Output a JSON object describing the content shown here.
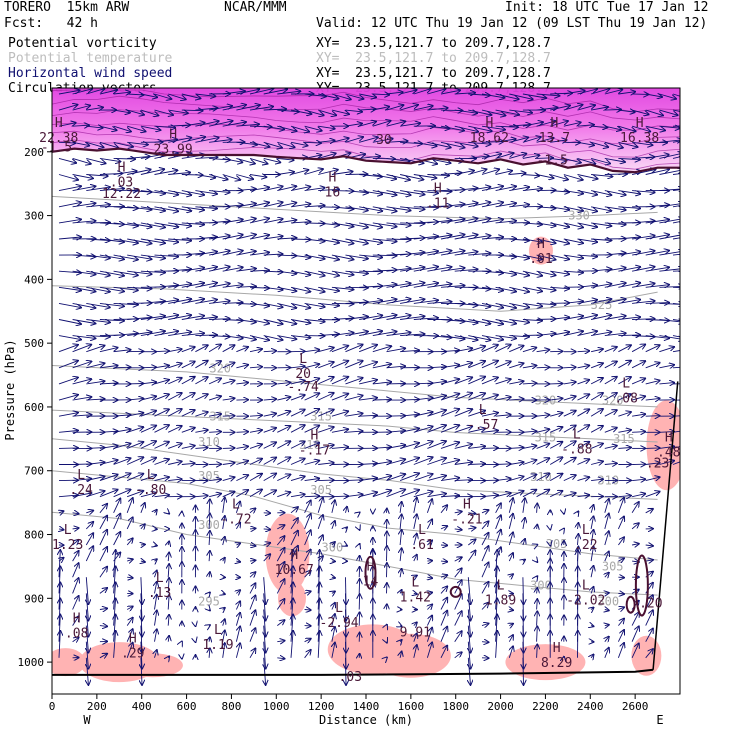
{
  "header": {
    "model": "TORERO  15km ARW",
    "center": "NCAR/MMM",
    "init": "Init: 18 UTC Tue 17 Jan 12",
    "fcst": "Fcst:   42 h",
    "valid": "Valid: 12 UTC Thu 19 Jan 12 (09 LST Thu 19 Jan 12)"
  },
  "legend": [
    {
      "name": "Potential vorticity",
      "color": "#000000",
      "xy": "XY=  23.5,121.7 to 209.7,128.7"
    },
    {
      "name": "Potential temperature",
      "color": "#bdbdbd",
      "xy": "XY=  23.5,121.7 to 209.7,128.7"
    },
    {
      "name": "Horizontal wind speed",
      "color": "#101070",
      "xy": "XY=  23.5,121.7 to 209.7,128.7"
    },
    {
      "name": "Circulation vectors",
      "color": "#000000",
      "xy": "XY=  23.5,121.7 to 209.7,128.7"
    }
  ],
  "colors": {
    "wind": "#101070",
    "theta": "#a8a8a8",
    "pv_pos": "#ffb3b3",
    "pv_contour": "#4a1030",
    "strat": "#e030d8"
  },
  "chart_data": {
    "type": "cross-section",
    "xlabel": "Distance (km)",
    "ylabel": "Pressure (hPa)",
    "xlim": [
      0,
      2800
    ],
    "ylim": [
      1050,
      100
    ],
    "x_ticks": [
      0,
      200,
      400,
      600,
      800,
      1000,
      1200,
      1400,
      1600,
      1800,
      2000,
      2200,
      2400,
      2600
    ],
    "y_ticks": [
      200,
      300,
      400,
      500,
      600,
      700,
      800,
      900,
      1000
    ],
    "west_label": "W",
    "east_label": "E",
    "theta_contours": [
      {
        "label": "300",
        "points": [
          [
            0,
            765
          ],
          [
            300,
            775
          ],
          [
            600,
            800
          ],
          [
            900,
            815
          ],
          [
            1200,
            830
          ],
          [
            1500,
            850
          ],
          [
            1800,
            870
          ],
          [
            2100,
            880
          ],
          [
            2400,
            890
          ],
          [
            2700,
            895
          ]
        ]
      },
      {
        "label": "305",
        "points": [
          [
            0,
            700
          ],
          [
            300,
            710
          ],
          [
            600,
            720
          ],
          [
            900,
            740
          ],
          [
            1200,
            770
          ],
          [
            1500,
            790
          ],
          [
            1800,
            800
          ],
          [
            2100,
            815
          ],
          [
            2400,
            830
          ],
          [
            2700,
            840
          ]
        ]
      },
      {
        "label": "310",
        "points": [
          [
            0,
            650
          ],
          [
            300,
            660
          ],
          [
            600,
            675
          ],
          [
            900,
            690
          ],
          [
            1200,
            705
          ],
          [
            1500,
            715
          ],
          [
            1800,
            730
          ],
          [
            2100,
            735
          ],
          [
            2400,
            740
          ],
          [
            2700,
            745
          ]
        ]
      },
      {
        "label": "315",
        "points": [
          [
            0,
            605
          ],
          [
            300,
            610
          ],
          [
            600,
            615
          ],
          [
            900,
            620
          ],
          [
            1200,
            625
          ],
          [
            1500,
            630
          ],
          [
            1800,
            640
          ],
          [
            2100,
            645
          ],
          [
            2400,
            650
          ],
          [
            2700,
            655
          ]
        ]
      },
      {
        "label": "320",
        "points": [
          [
            0,
            535
          ],
          [
            300,
            540
          ],
          [
            600,
            545
          ],
          [
            900,
            555
          ],
          [
            1200,
            565
          ],
          [
            1500,
            575
          ],
          [
            1800,
            585
          ],
          [
            2100,
            590
          ],
          [
            2400,
            595
          ],
          [
            2700,
            600
          ]
        ]
      },
      {
        "label": "325",
        "points": [
          [
            0,
            410
          ],
          [
            500,
            415
          ],
          [
            1000,
            425
          ],
          [
            1500,
            440
          ],
          [
            2000,
            450
          ],
          [
            2400,
            440
          ],
          [
            2700,
            420
          ]
        ]
      },
      {
        "label": "330",
        "points": [
          [
            0,
            270
          ],
          [
            500,
            280
          ],
          [
            1000,
            290
          ],
          [
            1500,
            300
          ],
          [
            2000,
            305
          ],
          [
            2400,
            300
          ],
          [
            2700,
            295
          ]
        ]
      }
    ],
    "theta_label_positions": [
      {
        "label": "295",
        "x": 700,
        "p": 905
      },
      {
        "label": "300",
        "x": 700,
        "p": 785
      },
      {
        "label": "300",
        "x": 1250,
        "p": 820
      },
      {
        "label": "300",
        "x": 2180,
        "p": 880
      },
      {
        "label": "300",
        "x": 2480,
        "p": 905
      },
      {
        "label": "305",
        "x": 700,
        "p": 708
      },
      {
        "label": "305",
        "x": 1200,
        "p": 730
      },
      {
        "label": "305",
        "x": 2250,
        "p": 815
      },
      {
        "label": "305",
        "x": 2500,
        "p": 850
      },
      {
        "label": "310",
        "x": 700,
        "p": 655
      },
      {
        "label": "310",
        "x": 1150,
        "p": 660
      },
      {
        "label": "310",
        "x": 2180,
        "p": 710
      },
      {
        "label": "310",
        "x": 2480,
        "p": 715
      },
      {
        "label": "315",
        "x": 750,
        "p": 615
      },
      {
        "label": "315",
        "x": 1200,
        "p": 615
      },
      {
        "label": "315",
        "x": 2200,
        "p": 648
      },
      {
        "label": "315",
        "x": 2550,
        "p": 650
      },
      {
        "label": "320",
        "x": 750,
        "p": 540
      },
      {
        "label": "320",
        "x": 2200,
        "p": 590
      },
      {
        "label": "320",
        "x": 2500,
        "p": 590
      },
      {
        "label": "325",
        "x": 2450,
        "p": 440
      },
      {
        "label": "330",
        "x": 2350,
        "p": 300
      }
    ],
    "tropopause": [
      [
        0,
        200
      ],
      [
        100,
        195
      ],
      [
        200,
        198
      ],
      [
        300,
        195
      ],
      [
        400,
        200
      ],
      [
        500,
        205
      ],
      [
        700,
        205
      ],
      [
        900,
        205
      ],
      [
        1000,
        208
      ],
      [
        1100,
        210
      ],
      [
        1200,
        212
      ],
      [
        1300,
        207
      ],
      [
        1400,
        214
      ],
      [
        1500,
        216
      ],
      [
        1600,
        218
      ],
      [
        1700,
        210
      ],
      [
        1800,
        214
      ],
      [
        1900,
        218
      ],
      [
        2000,
        212
      ],
      [
        2100,
        220
      ],
      [
        2200,
        215
      ],
      [
        2300,
        225
      ],
      [
        2400,
        220
      ],
      [
        2500,
        230
      ],
      [
        2600,
        232
      ],
      [
        2700,
        225
      ],
      [
        2800,
        225
      ]
    ],
    "ground": [
      [
        0,
        1020
      ],
      [
        1200,
        1020
      ],
      [
        2000,
        1018
      ],
      [
        2600,
        1015
      ],
      [
        2680,
        1012
      ]
    ],
    "pv_extrema": [
      {
        "kind": "H",
        "value": "22.38",
        "x": 30,
        "p": 180
      },
      {
        "kind": "",
        "value": "-1.5",
        "x": 20,
        "p": 195
      },
      {
        "kind": "H",
        "value": "23.99",
        "x": 540,
        "p": 198
      },
      {
        "kind": "",
        "value": "30",
        "x": 1480,
        "p": 183
      },
      {
        "kind": "H",
        "value": "18.62",
        "x": 1950,
        "p": 180
      },
      {
        "kind": "H",
        "value": "13.7",
        "x": 2240,
        "p": 180
      },
      {
        "kind": "H",
        "value": "16.38",
        "x": 2620,
        "p": 180
      },
      {
        "kind": "",
        "value": "-1.5",
        "x": 2230,
        "p": 215
      },
      {
        "kind": "H",
        "value": ".03",
        "x": 310,
        "p": 250
      },
      {
        "kind": "",
        "value": "12.22",
        "x": 310,
        "p": 268
      },
      {
        "kind": "H",
        "value": "16",
        "x": 1250,
        "p": 265
      },
      {
        "kind": "H",
        "value": ".11",
        "x": 1720,
        "p": 283
      },
      {
        "kind": "H",
        "value": ".01",
        "x": 2180,
        "p": 370
      },
      {
        "kind": "L",
        "value": "20",
        "x": 1120,
        "p": 550
      },
      {
        "kind": "",
        "value": "-.74",
        "x": 1120,
        "p": 570
      },
      {
        "kind": "L",
        "value": ".08",
        "x": 2560,
        "p": 588
      },
      {
        "kind": "L",
        "value": "-.57",
        "x": 1920,
        "p": 630
      },
      {
        "kind": "H",
        "value": "-.17",
        "x": 1170,
        "p": 670
      },
      {
        "kind": "L",
        "value": "-.88",
        "x": 2340,
        "p": 668
      },
      {
        "kind": "H",
        "value": ".48",
        "x": 2750,
        "p": 673
      },
      {
        "kind": "",
        "value": ".23",
        "x": 2700,
        "p": 690
      },
      {
        "kind": "L",
        "value": ".24",
        "x": 130,
        "p": 732
      },
      {
        "kind": "L",
        "value": "-.80",
        "x": 440,
        "p": 732
      },
      {
        "kind": "L",
        "value": "-.72",
        "x": 820,
        "p": 778
      },
      {
        "kind": "H",
        "value": "-.21",
        "x": 1850,
        "p": 778
      },
      {
        "kind": "L",
        "value": "1.23",
        "x": 70,
        "p": 818
      },
      {
        "kind": "H",
        "value": "10.67",
        "x": 1080,
        "p": 857
      },
      {
        "kind": "L",
        "value": ".61",
        "x": 1650,
        "p": 818
      },
      {
        "kind": "L",
        "value": ".22",
        "x": 2380,
        "p": 818
      },
      {
        "kind": "H",
        "value": "14",
        "x": 1420,
        "p": 875
      },
      {
        "kind": "L",
        "value": ".13",
        "x": 480,
        "p": 893
      },
      {
        "kind": "L",
        "value": "-2.94",
        "x": 1280,
        "p": 940
      },
      {
        "kind": "L",
        "value": "1.42",
        "x": 1620,
        "p": 900
      },
      {
        "kind": "L",
        "value": "1.89",
        "x": 2000,
        "p": 905
      },
      {
        "kind": "L",
        "value": "-2.02",
        "x": 2380,
        "p": 905
      },
      {
        "kind": "",
        "value": ".20",
        "x": 2670,
        "p": 910
      },
      {
        "kind": "H",
        "value": ".08",
        "x": 110,
        "p": 957
      },
      {
        "kind": "L",
        "value": "1.19",
        "x": 740,
        "p": 975
      },
      {
        "kind": "",
        "value": "9.91",
        "x": 1620,
        "p": 955
      },
      {
        "kind": "H",
        "value": ".29",
        "x": 360,
        "p": 988
      },
      {
        "kind": "H",
        "value": "8.29",
        "x": 2250,
        "p": 1003
      },
      {
        "kind": "",
        "value": ".03",
        "x": 1330,
        "p": 1025
      }
    ]
  }
}
